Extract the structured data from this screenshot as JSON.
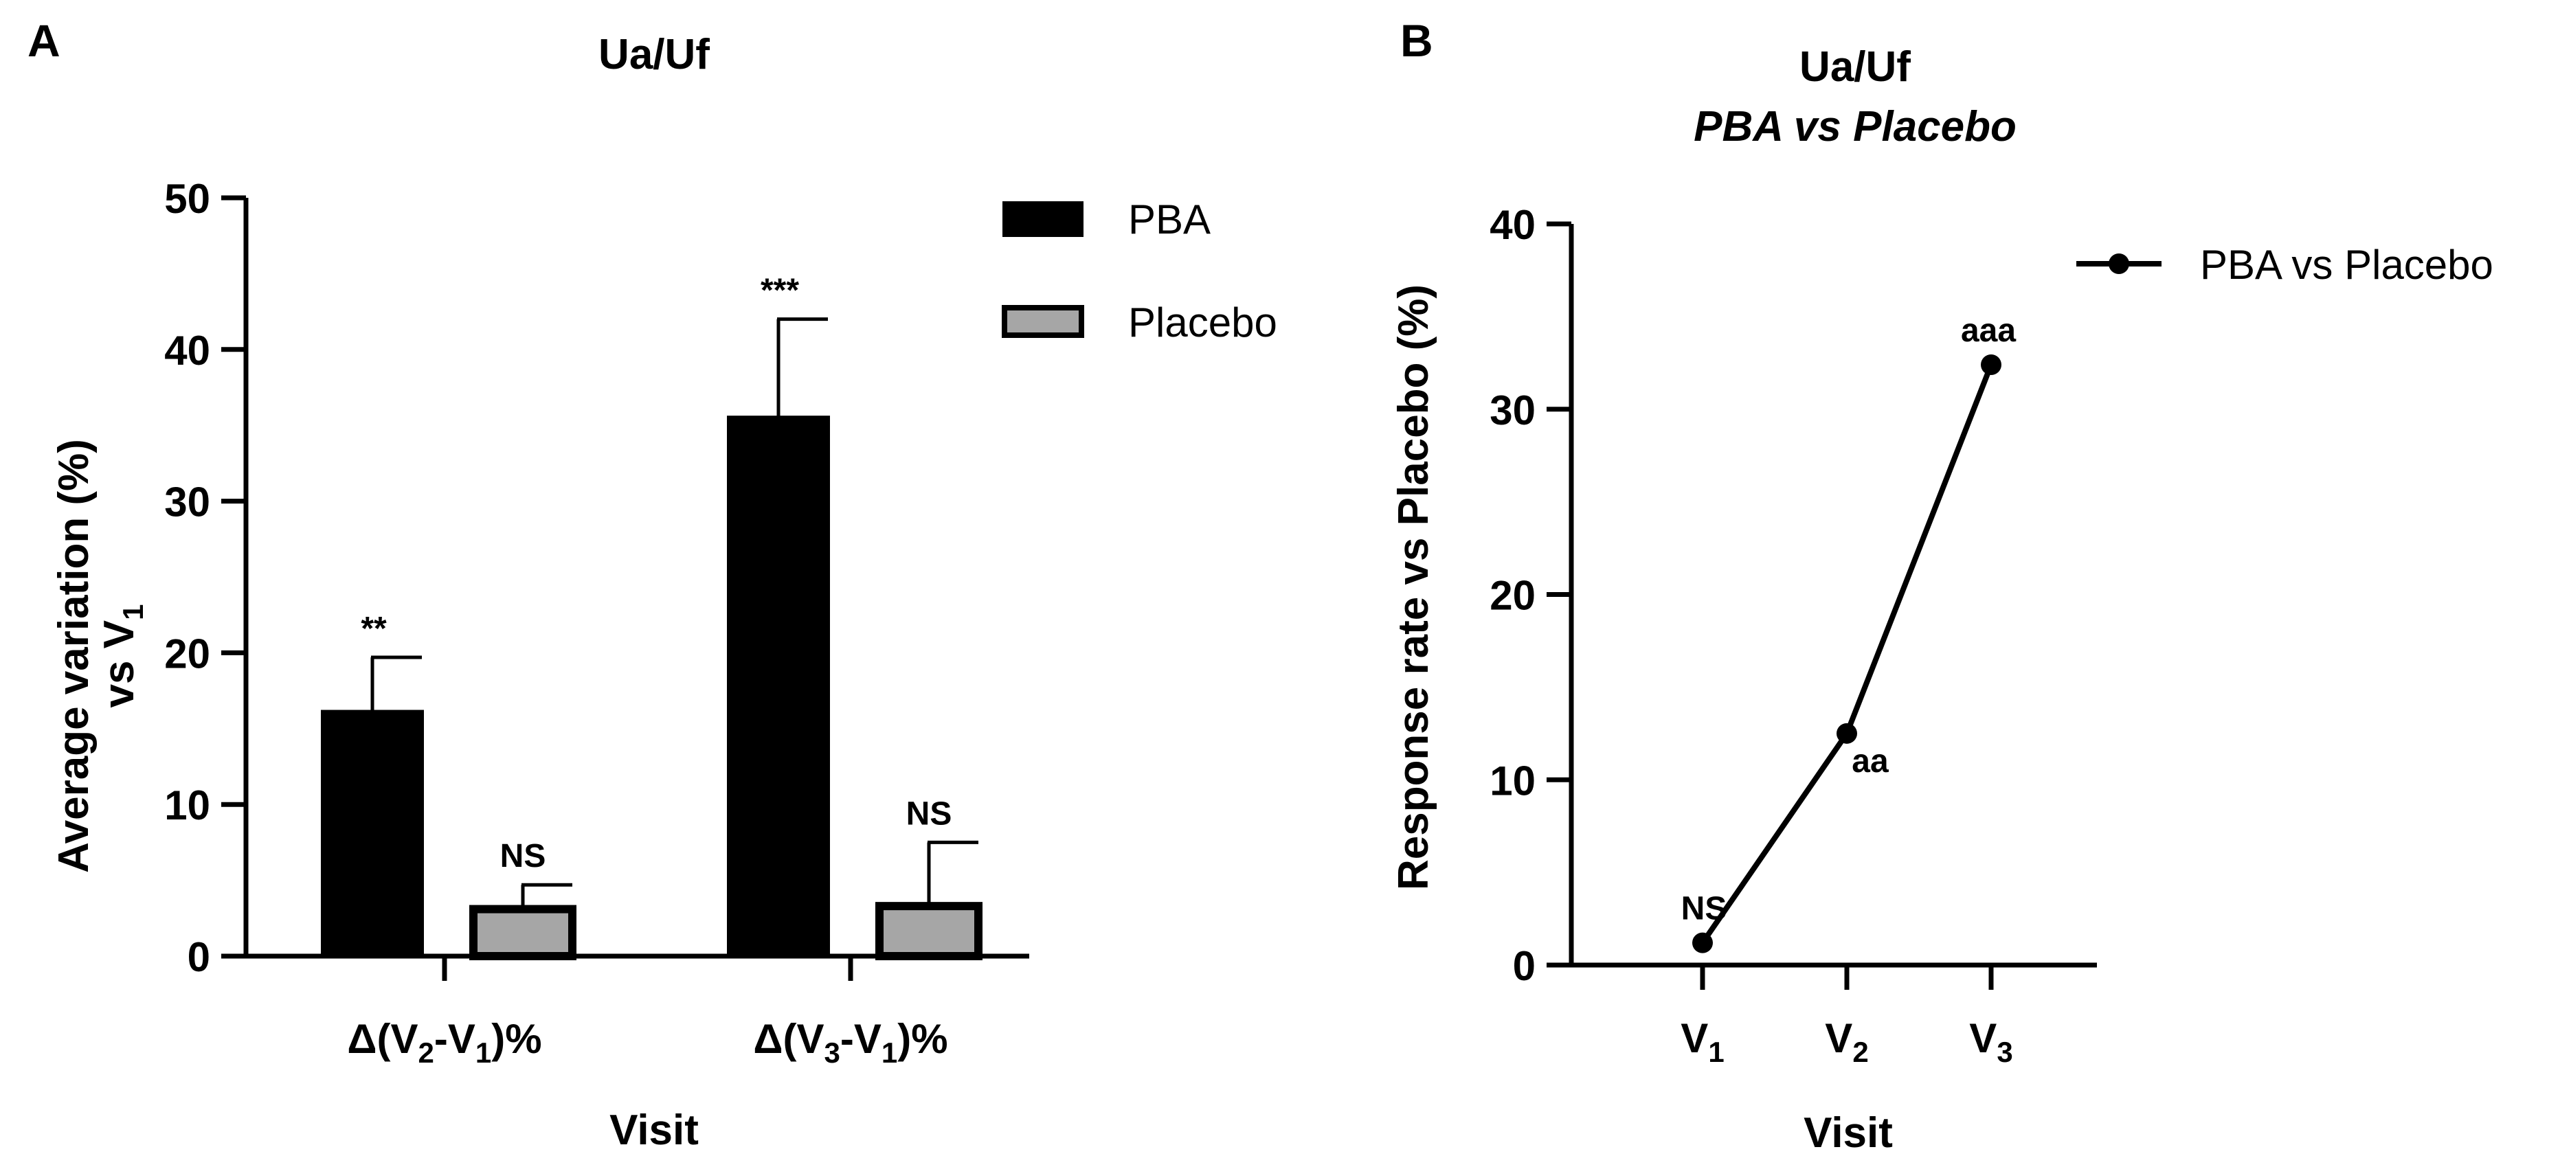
{
  "chart_data": [
    {
      "panel_label": "A",
      "type": "bar",
      "title": "Ua/Uf",
      "xlabel": "Visit",
      "ylabel_line1": "Average variation (%)",
      "ylabel_line2_prefix": "vs V",
      "ylabel_line2_sub": "1",
      "ylim": [
        0,
        50
      ],
      "yticks": [
        0,
        10,
        20,
        30,
        40,
        50
      ],
      "categories": [
        {
          "pre": "Δ(V",
          "sub1": "2",
          "mid": "-V",
          "sub2": "1",
          "post": ")%"
        },
        {
          "pre": "Δ(V",
          "sub1": "3",
          "mid": "-V",
          "sub2": "1",
          "post": ")%"
        }
      ],
      "series": [
        {
          "name": "PBA",
          "color": "#000000",
          "values": [
            16.1,
            35.5
          ],
          "errors": [
            3.6,
            6.5
          ],
          "significance": [
            "**",
            "***"
          ]
        },
        {
          "name": "Placebo",
          "color": "#a6a6a6",
          "values": [
            3.1,
            3.3
          ],
          "errors": [
            1.6,
            4.2
          ],
          "significance": [
            "NS",
            "NS"
          ]
        }
      ],
      "legend_position": "top-right"
    },
    {
      "panel_label": "B",
      "type": "line",
      "title": "Ua/Uf",
      "subtitle": "PBA vs Placebo",
      "xlabel": "Visit",
      "ylabel": "Response rate vs Placebo (%)",
      "ylim": [
        0,
        40
      ],
      "yticks": [
        0,
        10,
        20,
        30,
        40
      ],
      "x": [
        {
          "pre": "V",
          "sub": "1"
        },
        {
          "pre": "V",
          "sub": "2"
        },
        {
          "pre": "V",
          "sub": "3"
        }
      ],
      "series": [
        {
          "name": "PBA vs Placebo",
          "color": "#000000",
          "values": [
            1.2,
            12.5,
            32.4
          ],
          "annotations": [
            "NS",
            "aa",
            "aaa"
          ]
        }
      ],
      "legend_position": "top-right"
    }
  ]
}
